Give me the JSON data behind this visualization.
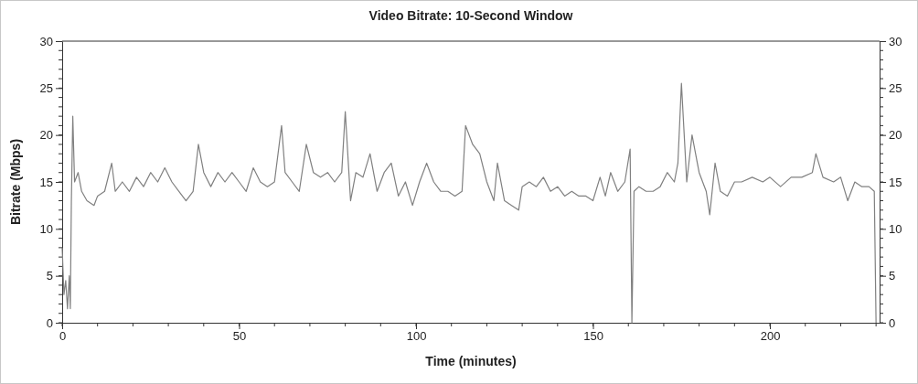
{
  "chart_data": {
    "type": "line",
    "title": "Video Bitrate: 10-Second Window",
    "xlabel": "Time (minutes)",
    "ylabel": "Bitrate (Mbps)",
    "xlim": [
      0,
      231
    ],
    "xticks": [
      0,
      50,
      100,
      150,
      200
    ],
    "ylim": [
      0,
      30
    ],
    "yticks": [
      0,
      5,
      10,
      15,
      20,
      25,
      30
    ],
    "y2lim": [
      0,
      30
    ],
    "y2ticks": [
      0,
      5,
      10,
      15,
      20,
      25,
      30
    ],
    "line_style": "solid",
    "series": [
      {
        "color": "#808080",
        "x": [
          0,
          0.5,
          1,
          1.5,
          2,
          2.3,
          2.6,
          3,
          3.5,
          4.5,
          5.5,
          7,
          9,
          10,
          12,
          14,
          15,
          17,
          19,
          21,
          23,
          25,
          27,
          29,
          31,
          33,
          35,
          37,
          38.5,
          40,
          42,
          44,
          46,
          48,
          50,
          52,
          54,
          56,
          58,
          60,
          62,
          63,
          65,
          67,
          69,
          71,
          73,
          75,
          77,
          79,
          80,
          81.5,
          83,
          85,
          87,
          89,
          91,
          93,
          95,
          97,
          99,
          101,
          103,
          105,
          107,
          109,
          111,
          113,
          114,
          116,
          118,
          120,
          122,
          123,
          125,
          127,
          129,
          130,
          132,
          134,
          136,
          138,
          140,
          142,
          144,
          146,
          148,
          150,
          152,
          153.5,
          155,
          157,
          159,
          160.5,
          161,
          161.6,
          163,
          165,
          167,
          169,
          171,
          173,
          174,
          175,
          176.5,
          178,
          180,
          182,
          183,
          184.5,
          186,
          188,
          190,
          192,
          195,
          198,
          200,
          203,
          206,
          209,
          212,
          213,
          215,
          218,
          220,
          222,
          224,
          226,
          228,
          229.5,
          230
        ],
        "values": [
          8,
          3,
          4.5,
          1.5,
          5,
          1.5,
          13,
          22,
          15,
          16,
          14,
          13,
          12.5,
          13.5,
          14,
          17,
          14,
          15,
          14,
          15.5,
          14.5,
          16,
          15,
          16.5,
          15,
          14,
          13,
          14,
          19,
          16,
          14.5,
          16,
          15,
          16,
          15,
          14,
          16.5,
          15,
          14.5,
          15,
          21,
          16,
          15,
          14,
          19,
          16,
          15.5,
          16,
          15,
          16,
          22.5,
          13,
          16,
          15.5,
          18,
          14,
          16,
          17,
          13.5,
          15,
          12.5,
          15,
          17,
          15,
          14,
          14,
          13.5,
          14,
          21,
          19,
          18,
          15,
          13,
          17,
          13,
          12.5,
          12,
          14.5,
          15,
          14.5,
          15.5,
          14,
          14.5,
          13.5,
          14,
          13.5,
          13.5,
          13,
          15.5,
          13.5,
          16,
          14,
          15,
          18.5,
          0,
          14,
          14.5,
          14,
          14,
          14.5,
          16,
          15,
          17,
          25.5,
          15,
          20,
          16,
          14,
          11.5,
          17,
          14,
          13.5,
          15,
          15,
          15.5,
          15,
          15.5,
          14.5,
          15.5,
          15.5,
          16,
          18,
          15.5,
          15,
          15.5,
          13,
          15,
          14.5,
          14.5,
          14,
          0
        ]
      }
    ]
  }
}
